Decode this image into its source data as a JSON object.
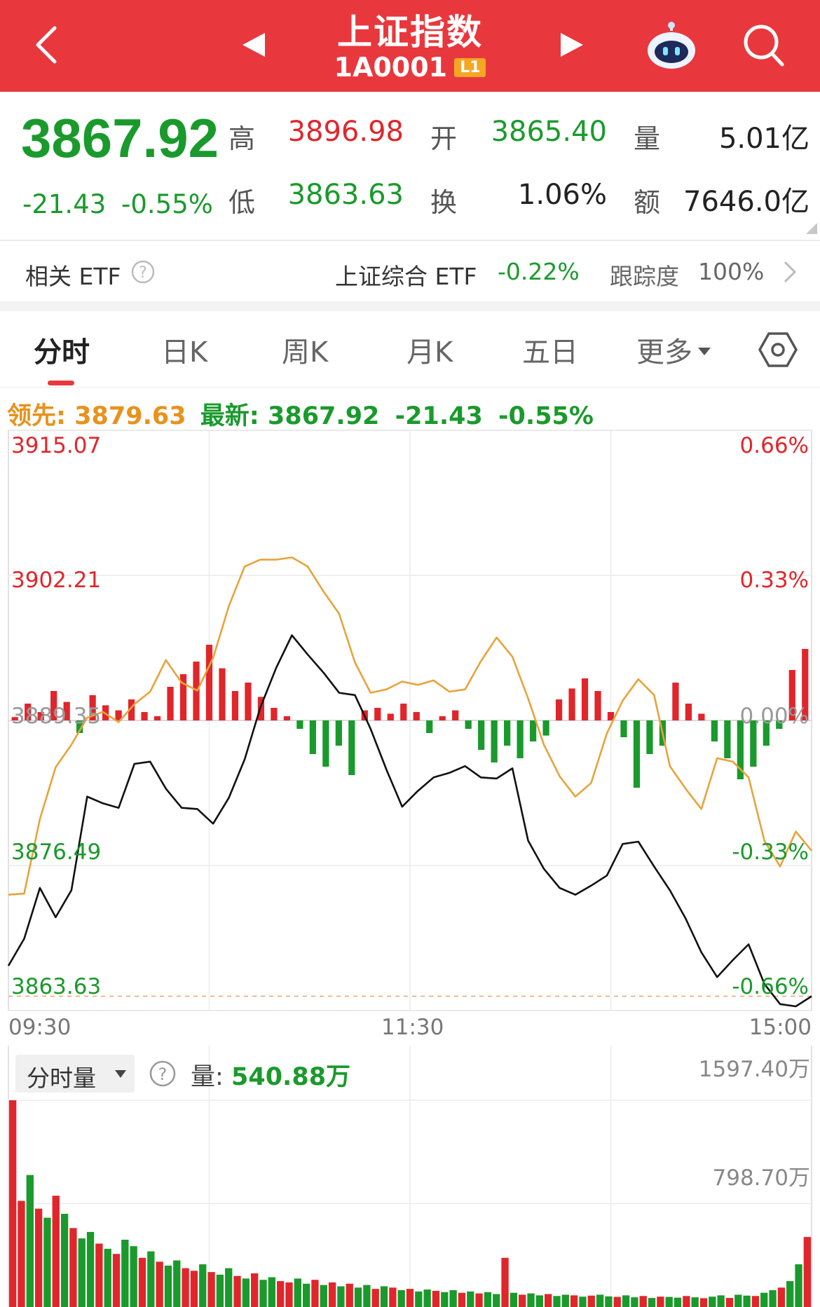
{
  "header": {
    "title": "上证指数",
    "code": "1A0001",
    "level": "L1",
    "icons": [
      "back-icon",
      "prev-arrow-icon",
      "next-arrow-icon",
      "robot-assistant-icon",
      "search-icon"
    ]
  },
  "quote": {
    "price": "3867.92",
    "change": "-21.43",
    "change_pct": "-0.55%",
    "high_label": "高",
    "high": "3896.98",
    "open_label": "开",
    "open": "3865.40",
    "volume_label": "量",
    "volume": "5.01亿",
    "low_label": "低",
    "low": "3863.63",
    "turnover_label": "换",
    "turnover": "1.06%",
    "amount_label": "额",
    "amount": "7646.0亿"
  },
  "etf": {
    "label": "相关 ETF",
    "name": "上证综合 ETF",
    "change": "-0.22%",
    "tracking_label": "跟踪度",
    "tracking": "100%"
  },
  "tabs": [
    {
      "label": "分时",
      "active": true
    },
    {
      "label": "日K"
    },
    {
      "label": "周K"
    },
    {
      "label": "月K"
    },
    {
      "label": "五日"
    },
    {
      "label": "更多"
    }
  ],
  "lead_bar": {
    "lead_label": "领先:",
    "lead_value": "3879.63",
    "latest_label": "最新:",
    "latest_value": "3867.92",
    "change": "-21.43",
    "change_pct": "-0.55%"
  },
  "colors": {
    "up": "#e0262b",
    "down": "#1a9a2c",
    "lead": "#e8a33a",
    "price": "#111111",
    "brand": "#e8383d"
  },
  "chart_data": [
    {
      "type": "line",
      "y_left_ticks": [
        "3915.07",
        "3902.21",
        "3889.35",
        "3876.49",
        "3863.63"
      ],
      "y_right_ticks": [
        "0.66%",
        "0.33%",
        "0.00%",
        "-0.33%",
        "-0.66%"
      ],
      "x_ticks": [
        "09:30",
        "11:30",
        "15:00"
      ],
      "ylim": [
        3863.63,
        3915.07
      ],
      "prev_close": 3889.35,
      "series": [
        {
          "name": "最新",
          "color": "#111111",
          "values": [
            3867.6,
            3870.0,
            3874.5,
            3871.9,
            3874.3,
            3882.6,
            3882.0,
            3881.6,
            3885.5,
            3885.7,
            3883.3,
            3881.6,
            3881.5,
            3880.2,
            3882.5,
            3885.9,
            3890.5,
            3894.0,
            3896.9,
            3895.2,
            3893.6,
            3891.8,
            3891.6,
            3888.6,
            3885.0,
            3881.7,
            3883.1,
            3884.3,
            3884.7,
            3885.3,
            3884.3,
            3884.2,
            3885.1,
            3878.7,
            3876.2,
            3874.5,
            3873.9,
            3874.7,
            3875.6,
            3878.4,
            3878.6,
            3876.4,
            3874.3,
            3871.8,
            3868.8,
            3866.6,
            3868.1,
            3869.5,
            3866.0,
            3864.2,
            3864.0,
            3864.9
          ]
        },
        {
          "name": "领先",
          "color": "#e8a33a",
          "values": [
            3873.9,
            3874.0,
            3880.6,
            3885.2,
            3887.2,
            3889.6,
            3890.1,
            3889.2,
            3890.8,
            3891.9,
            3894.7,
            3892.7,
            3892.0,
            3894.9,
            3899.5,
            3903.0,
            3903.6,
            3903.6,
            3903.8,
            3903.0,
            3900.8,
            3898.8,
            3894.5,
            3891.8,
            3892.1,
            3892.8,
            3892.5,
            3892.9,
            3891.9,
            3892.1,
            3894.6,
            3896.7,
            3895.0,
            3891.3,
            3887.2,
            3884.4,
            3882.6,
            3883.8,
            3888.2,
            3891.1,
            3893.0,
            3891.6,
            3885.3,
            3883.3,
            3881.5,
            3886.0,
            3885.7,
            3884.3,
            3878.7,
            3876.4,
            3879.5,
            3877.8
          ]
        }
      ],
      "bars": {
        "name": "涨跌力度",
        "values": [
          0.04,
          0.2,
          0.1,
          0.35,
          0.22,
          -0.15,
          0.3,
          0.18,
          0.12,
          0.25,
          0.1,
          0.05,
          0.4,
          0.55,
          0.7,
          0.9,
          0.62,
          0.35,
          0.45,
          0.28,
          0.15,
          0.05,
          -0.1,
          -0.4,
          -0.55,
          -0.3,
          -0.65,
          0.12,
          0.15,
          0.08,
          0.2,
          0.1,
          -0.15,
          0.05,
          0.12,
          -0.1,
          -0.35,
          -0.5,
          -0.3,
          -0.45,
          -0.25,
          -0.18,
          0.25,
          0.38,
          0.5,
          0.35,
          0.1,
          -0.2,
          -0.8,
          -0.4,
          -0.3,
          0.45,
          0.2,
          0.08,
          -0.25,
          -0.45,
          -0.7,
          -0.55,
          -0.3,
          -0.1,
          0.6,
          0.85
        ]
      }
    },
    {
      "type": "bar",
      "title": "分时量",
      "volume_label": "量:",
      "volume_value": "540.88万",
      "y_ticks": [
        "1597.40万",
        "798.70万"
      ],
      "ylim": [
        0,
        1597.4
      ],
      "unit": "万",
      "values": [
        1597.4,
        820,
        1020,
        760,
        690,
        860,
        720,
        610,
        530,
        580,
        490,
        450,
        410,
        520,
        470,
        380,
        430,
        350,
        320,
        360,
        300,
        280,
        330,
        270,
        250,
        300,
        240,
        220,
        260,
        210,
        230,
        200,
        190,
        220,
        180,
        210,
        170,
        190,
        160,
        180,
        150,
        170,
        140,
        160,
        150,
        130,
        140,
        120,
        135,
        125,
        115,
        130,
        110,
        120,
        105,
        115,
        100,
        380,
        110,
        95,
        105,
        90,
        100,
        85,
        95,
        90,
        80,
        88,
        95,
        82,
        78,
        90,
        75,
        85,
        70,
        80,
        78,
        72,
        85,
        75,
        68,
        80,
        90,
        70,
        95,
        88,
        85,
        110,
        130,
        150,
        200,
        330,
        540.88
      ],
      "colors": [
        "r",
        "r",
        "g",
        "r",
        "g",
        "r",
        "g",
        "r",
        "g",
        "g",
        "r",
        "g",
        "r",
        "g",
        "g",
        "r",
        "g",
        "r",
        "g",
        "g",
        "r",
        "r",
        "g",
        "r",
        "g",
        "g",
        "r",
        "g",
        "r",
        "g",
        "g",
        "r",
        "r",
        "g",
        "g",
        "r",
        "g",
        "r",
        "g",
        "r",
        "g",
        "g",
        "r",
        "g",
        "r",
        "g",
        "r",
        "g",
        "g",
        "r",
        "g",
        "g",
        "r",
        "g",
        "r",
        "g",
        "g",
        "r",
        "g",
        "r",
        "g",
        "g",
        "r",
        "g",
        "g",
        "r",
        "g",
        "r",
        "g",
        "g",
        "r",
        "g",
        "g",
        "r",
        "g",
        "r",
        "g",
        "g",
        "r",
        "g",
        "r",
        "g",
        "g",
        "r",
        "g",
        "g",
        "r",
        "g",
        "g",
        "r",
        "g",
        "g",
        "r"
      ]
    }
  ]
}
